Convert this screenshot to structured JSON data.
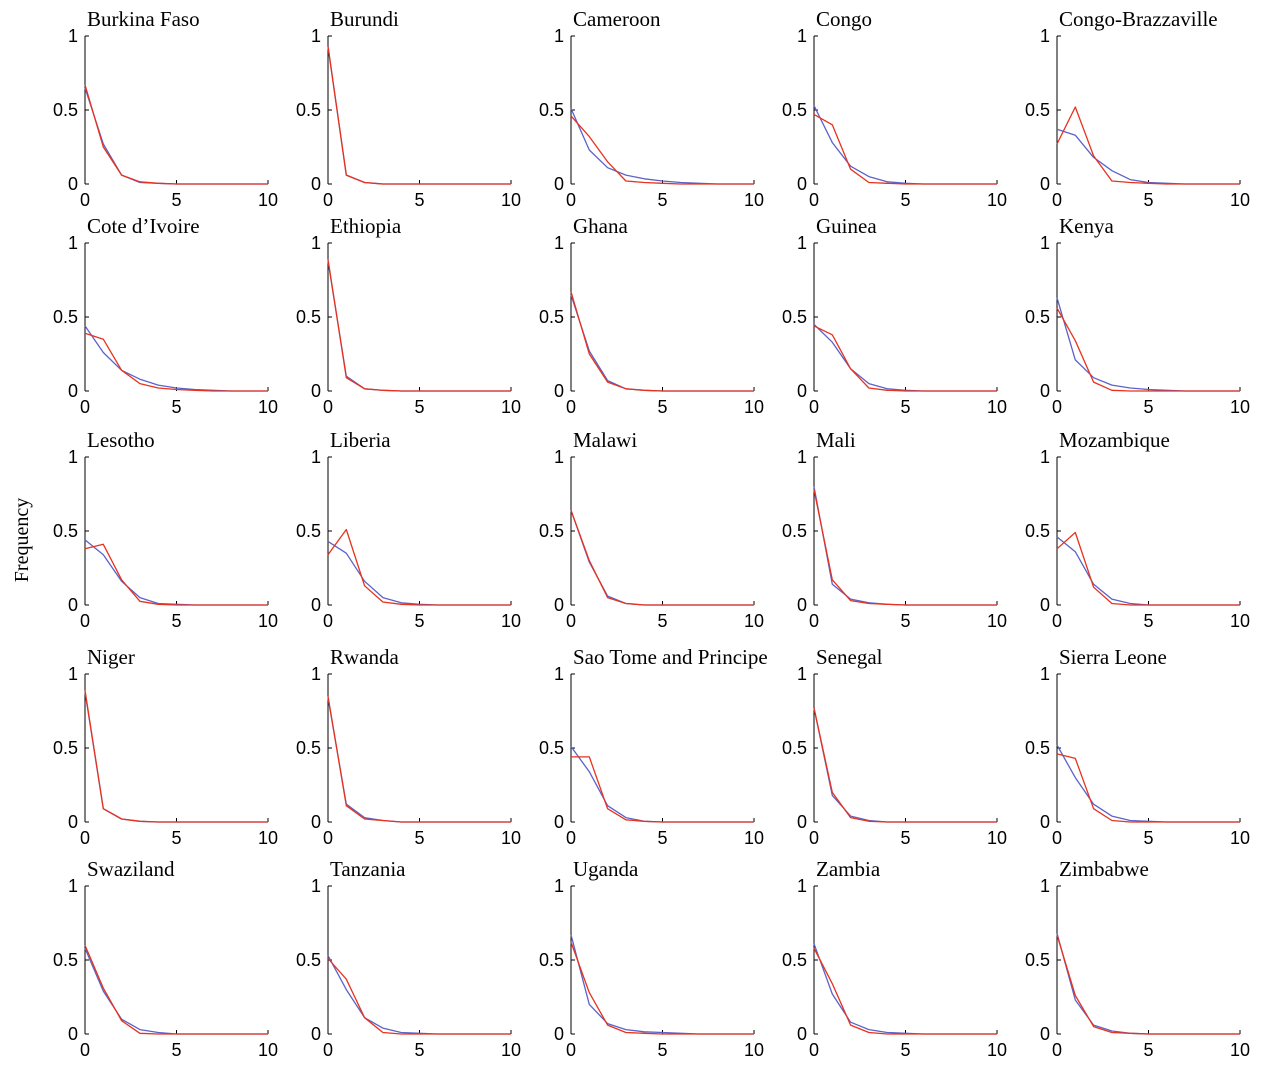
{
  "figure": {
    "ylabel": "Frequency",
    "colors": {
      "blue": "#5a63c9",
      "red": "#e8321e"
    }
  },
  "chart_data": {
    "type": "line",
    "layout": "5x5 small multiples",
    "xlim": [
      0,
      10
    ],
    "ylim": [
      0,
      1
    ],
    "xticks": [
      0,
      5,
      10
    ],
    "yticks": [
      0,
      0.5,
      1
    ],
    "ytick_labels": [
      "0",
      "0.5",
      "1"
    ],
    "xtick_labels": [
      "0",
      "5",
      "10"
    ],
    "ylabel": "Frequency",
    "x": [
      0,
      1,
      2,
      3,
      4,
      5,
      6,
      7,
      8,
      9,
      10
    ],
    "panels": [
      {
        "title": "Burkina Faso",
        "series": [
          {
            "color": "blue",
            "values": [
              0.65,
              0.27,
              0.06,
              0.01,
              0.005,
              0,
              0,
              0,
              0,
              0,
              0
            ]
          },
          {
            "color": "red",
            "values": [
              0.67,
              0.25,
              0.06,
              0.015,
              0.005,
              0,
              0,
              0,
              0,
              0,
              0
            ]
          }
        ]
      },
      {
        "title": "Burundi",
        "series": [
          {
            "color": "blue",
            "values": [
              0.93,
              0.06,
              0.01,
              0,
              0,
              0,
              0,
              0,
              0,
              0,
              0
            ]
          },
          {
            "color": "red",
            "values": [
              0.93,
              0.06,
              0.01,
              0,
              0,
              0,
              0,
              0,
              0,
              0,
              0
            ]
          }
        ]
      },
      {
        "title": "Cameroon",
        "series": [
          {
            "color": "blue",
            "values": [
              0.51,
              0.23,
              0.11,
              0.06,
              0.035,
              0.02,
              0.01,
              0.005,
              0,
              0,
              0
            ]
          },
          {
            "color": "red",
            "values": [
              0.46,
              0.32,
              0.15,
              0.02,
              0.01,
              0.005,
              0,
              0,
              0,
              0,
              0
            ]
          }
        ]
      },
      {
        "title": "Congo",
        "series": [
          {
            "color": "blue",
            "values": [
              0.53,
              0.28,
              0.12,
              0.05,
              0.015,
              0.005,
              0,
              0,
              0,
              0,
              0
            ]
          },
          {
            "color": "red",
            "values": [
              0.47,
              0.4,
              0.1,
              0.01,
              0.005,
              0,
              0,
              0,
              0,
              0,
              0
            ]
          }
        ]
      },
      {
        "title": "Congo-Brazzaville",
        "series": [
          {
            "color": "blue",
            "values": [
              0.37,
              0.33,
              0.18,
              0.09,
              0.03,
              0.01,
              0.005,
              0,
              0,
              0,
              0
            ]
          },
          {
            "color": "red",
            "values": [
              0.27,
              0.52,
              0.19,
              0.02,
              0.01,
              0.005,
              0,
              0,
              0,
              0,
              0
            ]
          }
        ]
      },
      {
        "title": "Cote d’Ivoire",
        "series": [
          {
            "color": "blue",
            "values": [
              0.44,
              0.26,
              0.14,
              0.08,
              0.04,
              0.02,
              0.01,
              0.005,
              0,
              0,
              0
            ]
          },
          {
            "color": "red",
            "values": [
              0.39,
              0.35,
              0.14,
              0.05,
              0.02,
              0.01,
              0.005,
              0,
              0,
              0,
              0
            ]
          }
        ]
      },
      {
        "title": "Ethiopia",
        "series": [
          {
            "color": "blue",
            "values": [
              0.88,
              0.1,
              0.015,
              0.005,
              0,
              0,
              0,
              0,
              0,
              0,
              0
            ]
          },
          {
            "color": "red",
            "values": [
              0.89,
              0.09,
              0.015,
              0.005,
              0,
              0,
              0,
              0,
              0,
              0,
              0
            ]
          }
        ]
      },
      {
        "title": "Ghana",
        "series": [
          {
            "color": "blue",
            "values": [
              0.65,
              0.27,
              0.07,
              0.015,
              0.005,
              0,
              0,
              0,
              0,
              0,
              0
            ]
          },
          {
            "color": "red",
            "values": [
              0.67,
              0.25,
              0.06,
              0.015,
              0.005,
              0,
              0,
              0,
              0,
              0,
              0
            ]
          }
        ]
      },
      {
        "title": "Guinea",
        "series": [
          {
            "color": "blue",
            "values": [
              0.45,
              0.33,
              0.15,
              0.05,
              0.015,
              0.005,
              0,
              0,
              0,
              0,
              0
            ]
          },
          {
            "color": "red",
            "values": [
              0.44,
              0.38,
              0.15,
              0.02,
              0.005,
              0,
              0,
              0,
              0,
              0,
              0
            ]
          }
        ]
      },
      {
        "title": "Kenya",
        "series": [
          {
            "color": "blue",
            "values": [
              0.63,
              0.21,
              0.09,
              0.04,
              0.02,
              0.01,
              0.005,
              0,
              0,
              0,
              0
            ]
          },
          {
            "color": "red",
            "values": [
              0.56,
              0.34,
              0.06,
              0.005,
              0,
              0,
              0,
              0,
              0,
              0,
              0
            ]
          }
        ]
      },
      {
        "title": "Lesotho",
        "series": [
          {
            "color": "blue",
            "values": [
              0.44,
              0.34,
              0.16,
              0.05,
              0.01,
              0.005,
              0,
              0,
              0,
              0,
              0
            ]
          },
          {
            "color": "red",
            "values": [
              0.38,
              0.41,
              0.17,
              0.025,
              0.005,
              0,
              0,
              0,
              0,
              0,
              0
            ]
          }
        ]
      },
      {
        "title": "Liberia",
        "series": [
          {
            "color": "blue",
            "values": [
              0.43,
              0.35,
              0.16,
              0.05,
              0.015,
              0.005,
              0,
              0,
              0,
              0,
              0
            ]
          },
          {
            "color": "red",
            "values": [
              0.34,
              0.51,
              0.13,
              0.02,
              0.005,
              0,
              0,
              0,
              0,
              0,
              0
            ]
          }
        ]
      },
      {
        "title": "Malawi",
        "series": [
          {
            "color": "blue",
            "values": [
              0.64,
              0.29,
              0.06,
              0.01,
              0,
              0,
              0,
              0,
              0,
              0,
              0
            ]
          },
          {
            "color": "red",
            "values": [
              0.64,
              0.3,
              0.05,
              0.01,
              0,
              0,
              0,
              0,
              0,
              0,
              0
            ]
          }
        ]
      },
      {
        "title": "Mali",
        "series": [
          {
            "color": "blue",
            "values": [
              0.8,
              0.14,
              0.04,
              0.015,
              0.005,
              0,
              0,
              0,
              0,
              0,
              0
            ]
          },
          {
            "color": "red",
            "values": [
              0.78,
              0.17,
              0.03,
              0.01,
              0.005,
              0,
              0,
              0,
              0,
              0,
              0
            ]
          }
        ]
      },
      {
        "title": "Mozambique",
        "series": [
          {
            "color": "blue",
            "values": [
              0.46,
              0.36,
              0.14,
              0.04,
              0.01,
              0,
              0,
              0,
              0,
              0,
              0
            ]
          },
          {
            "color": "red",
            "values": [
              0.38,
              0.49,
              0.12,
              0.01,
              0,
              0,
              0,
              0,
              0,
              0,
              0
            ]
          }
        ]
      },
      {
        "title": "Niger",
        "series": [
          {
            "color": "blue",
            "values": [
              0.88,
              0.09,
              0.02,
              0.005,
              0,
              0,
              0,
              0,
              0,
              0,
              0
            ]
          },
          {
            "color": "red",
            "values": [
              0.89,
              0.09,
              0.02,
              0.005,
              0,
              0,
              0,
              0,
              0,
              0,
              0
            ]
          }
        ]
      },
      {
        "title": "Rwanda",
        "series": [
          {
            "color": "blue",
            "values": [
              0.84,
              0.12,
              0.03,
              0.01,
              0,
              0,
              0,
              0,
              0,
              0,
              0
            ]
          },
          {
            "color": "red",
            "values": [
              0.85,
              0.11,
              0.02,
              0.01,
              0,
              0,
              0,
              0,
              0,
              0,
              0
            ]
          }
        ]
      },
      {
        "title": "Sao Tome and Principe",
        "series": [
          {
            "color": "blue",
            "values": [
              0.51,
              0.34,
              0.11,
              0.03,
              0.005,
              0,
              0,
              0,
              0,
              0,
              0
            ]
          },
          {
            "color": "red",
            "values": [
              0.44,
              0.44,
              0.09,
              0.015,
              0.005,
              0,
              0,
              0,
              0,
              0,
              0
            ]
          }
        ]
      },
      {
        "title": "Senegal",
        "series": [
          {
            "color": "blue",
            "values": [
              0.77,
              0.18,
              0.04,
              0.01,
              0,
              0,
              0,
              0,
              0,
              0,
              0
            ]
          },
          {
            "color": "red",
            "values": [
              0.77,
              0.2,
              0.03,
              0.005,
              0,
              0,
              0,
              0,
              0,
              0,
              0
            ]
          }
        ]
      },
      {
        "title": "Sierra Leone",
        "series": [
          {
            "color": "blue",
            "values": [
              0.52,
              0.3,
              0.12,
              0.04,
              0.01,
              0.005,
              0,
              0,
              0,
              0,
              0
            ]
          },
          {
            "color": "red",
            "values": [
              0.46,
              0.43,
              0.09,
              0.01,
              0,
              0,
              0,
              0,
              0,
              0,
              0
            ]
          }
        ]
      },
      {
        "title": "Swaziland",
        "series": [
          {
            "color": "blue",
            "values": [
              0.58,
              0.29,
              0.1,
              0.03,
              0.01,
              0,
              0,
              0,
              0,
              0,
              0
            ]
          },
          {
            "color": "red",
            "values": [
              0.6,
              0.31,
              0.09,
              0.005,
              0,
              0,
              0,
              0,
              0,
              0,
              0
            ]
          }
        ]
      },
      {
        "title": "Tanzania",
        "series": [
          {
            "color": "blue",
            "values": [
              0.53,
              0.3,
              0.11,
              0.04,
              0.01,
              0.005,
              0,
              0,
              0,
              0,
              0
            ]
          },
          {
            "color": "red",
            "values": [
              0.51,
              0.37,
              0.11,
              0.01,
              0,
              0,
              0,
              0,
              0,
              0,
              0
            ]
          }
        ]
      },
      {
        "title": "Uganda",
        "series": [
          {
            "color": "blue",
            "values": [
              0.67,
              0.2,
              0.07,
              0.03,
              0.015,
              0.01,
              0.005,
              0,
              0,
              0,
              0
            ]
          },
          {
            "color": "red",
            "values": [
              0.62,
              0.28,
              0.06,
              0.01,
              0.005,
              0,
              0,
              0,
              0,
              0,
              0
            ]
          }
        ]
      },
      {
        "title": "Zambia",
        "series": [
          {
            "color": "blue",
            "values": [
              0.61,
              0.27,
              0.08,
              0.03,
              0.01,
              0.005,
              0,
              0,
              0,
              0,
              0
            ]
          },
          {
            "color": "red",
            "values": [
              0.58,
              0.34,
              0.06,
              0.01,
              0,
              0,
              0,
              0,
              0,
              0,
              0
            ]
          }
        ]
      },
      {
        "title": "Zimbabwe",
        "series": [
          {
            "color": "blue",
            "values": [
              0.68,
              0.23,
              0.06,
              0.02,
              0.005,
              0,
              0,
              0,
              0,
              0,
              0
            ]
          },
          {
            "color": "red",
            "values": [
              0.67,
              0.26,
              0.05,
              0.01,
              0.005,
              0,
              0,
              0,
              0,
              0,
              0
            ]
          }
        ]
      }
    ]
  }
}
